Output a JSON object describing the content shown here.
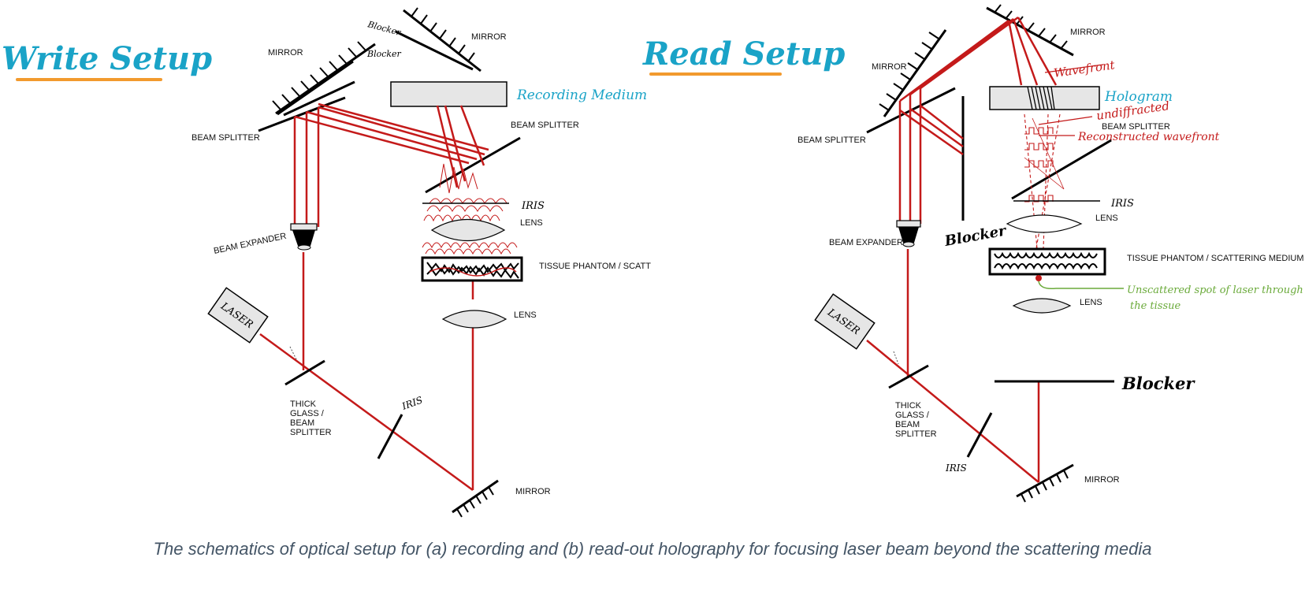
{
  "colors": {
    "beam": "#c41a1a",
    "title": "#1aa3c7",
    "underline": "#f29a2e",
    "annotation_green": "#6aaa3a",
    "caption": "#445566",
    "component_fill": "#e6e6e6"
  },
  "write_setup": {
    "title": "Write Setup",
    "labels": {
      "mirror_top_left": "MIRROR",
      "blocker_top_1": "Blocker",
      "blocker_top_2": "Blocker",
      "mirror_top_right": "MIRROR",
      "recording_medium": "Recording Medium",
      "beam_splitter_left": "BEAM SPLITTER",
      "beam_splitter_right": "BEAM SPLITTER",
      "iris_top": "IRIS",
      "lens_top": "LENS",
      "beam_expander": "BEAM EXPANDER",
      "tissue_phantom": "TISSUE PHANTOM / SCATT",
      "lens_bottom": "LENS",
      "laser": "LASER",
      "thick_glass_1": "THICK",
      "thick_glass_2": "GLASS /",
      "thick_glass_3": "BEAM",
      "thick_glass_4": "SPLITTER",
      "iris_bottom": "IRIS",
      "mirror_bottom": "MIRROR"
    }
  },
  "read_setup": {
    "title": "Read Setup",
    "labels": {
      "mirror_top_right": "MIRROR",
      "mirror_top_left": "MIRROR",
      "wavefront": "Wavefront",
      "hologram": "Hologram",
      "undiffracted": "undiffracted",
      "beam_splitter_right": "BEAM SPLITTER",
      "reconstructed_wavefront": "Reconstructed wavefront",
      "beam_splitter_left": "BEAM SPLITTER",
      "iris_top": "IRIS",
      "lens_top": "LENS",
      "beam_expander": "BEAM EXPANDER",
      "blocker_side": "Blocker",
      "tissue_phantom": "TISSUE PHANTOM / SCATTERING MEDIUM",
      "unscattered_1": "Unscattered spot of laser through",
      "unscattered_2": "the tissue",
      "lens_bottom": "LENS",
      "laser": "LASER",
      "blocker_bottom": "Blocker",
      "thick_glass_1": "THICK",
      "thick_glass_2": "GLASS /",
      "thick_glass_3": "BEAM",
      "thick_glass_4": "SPLITTER",
      "iris_bottom": "IRIS",
      "mirror_bottom": "MIRROR"
    }
  },
  "caption": "The schematics of optical setup for (a) recording and (b) read-out holography for focusing laser beam beyond the scattering media"
}
